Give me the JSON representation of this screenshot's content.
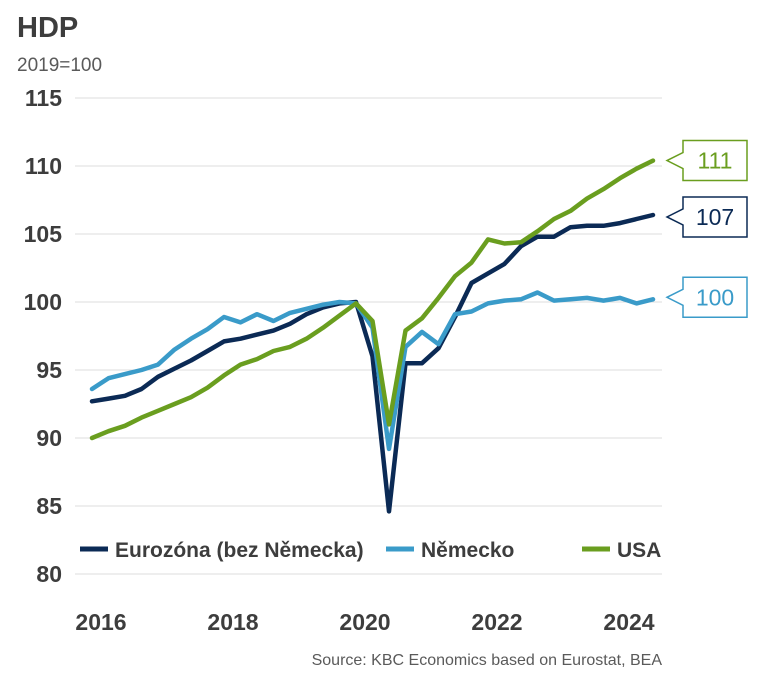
{
  "chart_data": {
    "type": "line",
    "title": "HDP",
    "subtitle": "2019=100",
    "source": "Source: KBC Economics based on Eurostat, BEA",
    "ylim": [
      80,
      115
    ],
    "yticks": [
      "115",
      "110",
      "105",
      "100",
      "95",
      "90",
      "85",
      "80"
    ],
    "yticks_values": [
      115,
      110,
      105,
      100,
      95,
      90,
      85,
      80
    ],
    "xticks": [
      "2016",
      "2018",
      "2020",
      "2022",
      "2024"
    ],
    "xticks_values": [
      2016,
      2018,
      2020,
      2022,
      2024
    ],
    "xlim": [
      2015.75,
      2024.75
    ],
    "grid": "horizontal",
    "legend_position": "bottom",
    "series": [
      {
        "name": "Eurozóna (bez Německa)",
        "color": "#0b2a55",
        "end_label": "107",
        "x": [
          2016.0,
          2016.25,
          2016.5,
          2016.75,
          2017.0,
          2017.25,
          2017.5,
          2017.75,
          2018.0,
          2018.25,
          2018.5,
          2018.75,
          2019.0,
          2019.25,
          2019.5,
          2019.75,
          2020.0,
          2020.25,
          2020.5,
          2020.75,
          2021.0,
          2021.25,
          2021.5,
          2021.75,
          2022.0,
          2022.25,
          2022.5,
          2022.75,
          2023.0,
          2023.25,
          2023.5,
          2023.75,
          2024.0,
          2024.25,
          2024.5
        ],
        "values": [
          92.7,
          92.9,
          93.1,
          93.6,
          94.5,
          95.1,
          95.7,
          96.4,
          97.1,
          97.3,
          97.6,
          97.9,
          98.4,
          99.1,
          99.6,
          99.9,
          100.0,
          96.0,
          84.6,
          95.5,
          95.5,
          96.6,
          98.9,
          101.4,
          102.1,
          102.8,
          104.1,
          104.8,
          104.8,
          105.5,
          105.6,
          105.6,
          105.8,
          106.1,
          106.4
        ]
      },
      {
        "name": "Německo",
        "color": "#3a9bc9",
        "end_label": "100",
        "x": [
          2016.0,
          2016.25,
          2016.5,
          2016.75,
          2017.0,
          2017.25,
          2017.5,
          2017.75,
          2018.0,
          2018.25,
          2018.5,
          2018.75,
          2019.0,
          2019.25,
          2019.5,
          2019.75,
          2020.0,
          2020.25,
          2020.5,
          2020.75,
          2021.0,
          2021.25,
          2021.5,
          2021.75,
          2022.0,
          2022.25,
          2022.5,
          2022.75,
          2023.0,
          2023.25,
          2023.5,
          2023.75,
          2024.0,
          2024.25,
          2024.5
        ],
        "values": [
          93.6,
          94.4,
          94.7,
          95.0,
          95.4,
          96.5,
          97.3,
          98.0,
          98.9,
          98.5,
          99.1,
          98.6,
          99.2,
          99.5,
          99.8,
          100.0,
          99.9,
          98.1,
          89.2,
          96.7,
          97.8,
          96.9,
          99.1,
          99.3,
          99.9,
          100.1,
          100.2,
          100.7,
          100.1,
          100.2,
          100.3,
          100.1,
          100.3,
          99.9,
          100.2
        ]
      },
      {
        "name": "USA",
        "color": "#6a9e1f",
        "end_label": "111",
        "x": [
          2016.0,
          2016.25,
          2016.5,
          2016.75,
          2017.0,
          2017.25,
          2017.5,
          2017.75,
          2018.0,
          2018.25,
          2018.5,
          2018.75,
          2019.0,
          2019.25,
          2019.5,
          2019.75,
          2020.0,
          2020.25,
          2020.5,
          2020.75,
          2021.0,
          2021.25,
          2021.5,
          2021.75,
          2022.0,
          2022.25,
          2022.5,
          2022.75,
          2023.0,
          2023.25,
          2023.5,
          2023.75,
          2024.0,
          2024.25,
          2024.5
        ],
        "values": [
          90.0,
          90.5,
          90.9,
          91.5,
          92.0,
          92.5,
          93.0,
          93.7,
          94.6,
          95.4,
          95.8,
          96.4,
          96.7,
          97.3,
          98.1,
          99.0,
          99.9,
          98.6,
          91.0,
          97.9,
          98.8,
          100.3,
          101.9,
          102.9,
          104.6,
          104.3,
          104.4,
          105.2,
          106.1,
          106.7,
          107.6,
          108.3,
          109.1,
          109.8,
          110.4
        ]
      }
    ]
  }
}
